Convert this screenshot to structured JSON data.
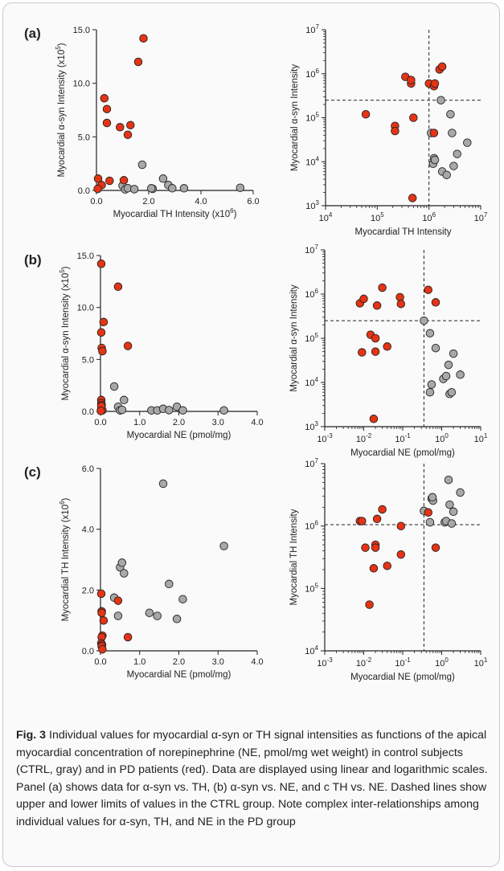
{
  "figure": {
    "caption_label": "Fig. 3",
    "caption_text": "Individual values for myocardial α-syn or TH signal intensities as functions of the apical myocardial concentration of norepinephrine (NE, pmol/mg wet weight) in control subjects (CTRL, gray) and in PD patients (red). Data are displayed using linear and logarithmic scales. Panel (a) shows data for α-syn vs. TH, (b) α-syn vs. NE, and c TH vs. NE. Dashed lines show upper and lower limits of values in the CTRL group. Note complex inter-relationships among individual values for α-syn, TH, and NE in the PD group",
    "colors": {
      "pd": "#e53415",
      "ctrl": "#a8a8a8",
      "marker_edge": "#222222",
      "axis": "#222222"
    }
  },
  "panel_labels": [
    "(a)",
    "(b)",
    "(c)"
  ],
  "chart_data": [
    {
      "id": "a-linear",
      "panel": "(a)",
      "type": "scatter",
      "scale": "linear",
      "xlabel": "Myocardial TH Intensity (x10",
      "xlabel_sup": "6",
      "xlabel_tail": ")",
      "ylabel": "Myocardial α-syn Intensity (x10",
      "ylabel_sup": "5",
      "ylabel_tail": ")",
      "xlim": [
        0,
        6
      ],
      "ylim": [
        0,
        15
      ],
      "xticks": [
        0,
        2,
        4,
        6
      ],
      "xtick_labels": [
        "0.0",
        "2.0",
        "4.0",
        "6.0"
      ],
      "yticks": [
        0,
        5,
        10,
        15
      ],
      "ytick_labels": [
        "0.0",
        "5.0",
        "10.0",
        "15.0"
      ],
      "series": [
        {
          "group": "pd",
          "points": [
            [
              0.06,
              1.1
            ],
            [
              0.2,
              0.5
            ],
            [
              0.3,
              8.6
            ],
            [
              0.4,
              6.3
            ],
            [
              0.4,
              7.6
            ],
            [
              0.5,
              0.9
            ],
            [
              0.9,
              5.9
            ],
            [
              1.05,
              0.95
            ],
            [
              1.2,
              5.2
            ],
            [
              1.3,
              6.1
            ],
            [
              1.6,
              12.0
            ],
            [
              1.8,
              14.2
            ],
            [
              0.05,
              0.15
            ]
          ]
        },
        {
          "group": "ctrl",
          "points": [
            [
              1.0,
              0.45
            ],
            [
              1.1,
              0.1
            ],
            [
              1.2,
              0.2
            ],
            [
              1.75,
              2.4
            ],
            [
              2.15,
              0.15
            ],
            [
              2.55,
              1.1
            ],
            [
              2.75,
              0.5
            ],
            [
              2.9,
              0.2
            ],
            [
              3.35,
              0.2
            ],
            [
              5.5,
              0.25
            ],
            [
              1.45,
              0.12
            ],
            [
              2.1,
              0.2
            ]
          ]
        }
      ]
    },
    {
      "id": "a-log",
      "panel": "(a)",
      "type": "scatter",
      "scale": "log",
      "xlabel": "Myocardial TH Intensity",
      "ylabel": "Myocardial α-syn Intensity",
      "xlim": [
        10000.0,
        10000000.0
      ],
      "ylim": [
        1000.0,
        10000000.0
      ],
      "xtick_exponents": [
        4,
        5,
        6,
        7
      ],
      "ytick_exponents": [
        3,
        4,
        5,
        6,
        7
      ],
      "vline": 1000000,
      "hline": 250000,
      "series": [
        {
          "group": "pd",
          "points": [
            [
              60000,
              120000
            ],
            [
              220000,
              65000
            ],
            [
              220000,
              50000
            ],
            [
              350000,
              850000
            ],
            [
              450000,
              600000
            ],
            [
              450000,
              720000
            ],
            [
              480000,
              1500
            ],
            [
              500000,
              100000
            ],
            [
              1000000,
              600000
            ],
            [
              1250000,
              45000
            ],
            [
              1250000,
              520000
            ],
            [
              1300000,
              600000
            ],
            [
              1600000,
              1250000
            ],
            [
              1800000,
              1450000
            ]
          ]
        },
        {
          "group": "ctrl",
          "points": [
            [
              1100000,
              45000
            ],
            [
              1200000,
              9000
            ],
            [
              1250000,
              12000
            ],
            [
              1300000,
              11000
            ],
            [
              1700000,
              250000
            ],
            [
              1800000,
              6000
            ],
            [
              2200000,
              5000
            ],
            [
              2600000,
              120000
            ],
            [
              2800000,
              45000
            ],
            [
              3000000,
              8000
            ],
            [
              3500000,
              15000
            ],
            [
              5500000,
              27000
            ]
          ]
        }
      ]
    },
    {
      "id": "b-linear",
      "panel": "(b)",
      "type": "scatter",
      "scale": "linear",
      "xlabel": "Myocardial NE (pmol/mg)",
      "ylabel": "Myocardial α-syn Intensity (x10",
      "ylabel_sup": "5",
      "ylabel_tail": ")",
      "xlim": [
        0,
        4
      ],
      "ylim": [
        0,
        15
      ],
      "xticks": [
        0,
        1,
        2,
        3,
        4
      ],
      "xtick_labels": [
        "0.0",
        "1.0",
        "2.0",
        "3.0",
        "4.0"
      ],
      "yticks": [
        0,
        5,
        10,
        15
      ],
      "ytick_labels": [
        "0.0",
        "5.0",
        "10.0",
        "15.0"
      ],
      "series": [
        {
          "group": "pd",
          "points": [
            [
              0.02,
              14.2
            ],
            [
              0.02,
              7.6
            ],
            [
              0.03,
              6.1
            ],
            [
              0.05,
              5.8
            ],
            [
              0.08,
              8.6
            ],
            [
              0.45,
              12.0
            ],
            [
              0.7,
              6.3
            ],
            [
              0.02,
              1.1
            ],
            [
              0.02,
              0.8
            ],
            [
              0.03,
              0.6
            ],
            [
              0.02,
              0.2
            ],
            [
              0.05,
              0.1
            ],
            [
              0.02,
              0.5
            ],
            [
              0.01,
              0.05
            ]
          ]
        },
        {
          "group": "ctrl",
          "points": [
            [
              0.35,
              2.4
            ],
            [
              0.45,
              0.45
            ],
            [
              0.5,
              0.1
            ],
            [
              0.6,
              1.1
            ],
            [
              0.55,
              0.15
            ],
            [
              1.3,
              0.1
            ],
            [
              1.45,
              0.1
            ],
            [
              1.6,
              0.25
            ],
            [
              1.75,
              0.12
            ],
            [
              1.95,
              0.45
            ],
            [
              2.1,
              0.1
            ],
            [
              3.15,
              0.1
            ]
          ]
        }
      ]
    },
    {
      "id": "b-log",
      "panel": "(b)",
      "type": "scatter",
      "scale": "log",
      "xlabel": "Myocardial NE (pmol/mg)",
      "ylabel": "Myocardial α-syn Intensity",
      "xlim": [
        0.001,
        10
      ],
      "ylim": [
        1000.0,
        10000000.0
      ],
      "xtick_exponents": [
        -3,
        -2,
        -1,
        0,
        1
      ],
      "ytick_exponents": [
        3,
        4,
        5,
        6,
        7
      ],
      "vline": 0.35,
      "hline": 250000,
      "series": [
        {
          "group": "pd",
          "points": [
            [
              0.008,
              620000
            ],
            [
              0.01,
              780000
            ],
            [
              0.015,
              120000
            ],
            [
              0.009,
              48000
            ],
            [
              0.02,
              50000
            ],
            [
              0.02,
              100000
            ],
            [
              0.022,
              550000
            ],
            [
              0.03,
              1400000
            ],
            [
              0.04,
              65000
            ],
            [
              0.085,
              850000
            ],
            [
              0.09,
              600000
            ],
            [
              0.45,
              1250000
            ],
            [
              0.7,
              650000
            ],
            [
              0.018,
              1500
            ]
          ]
        },
        {
          "group": "ctrl",
          "points": [
            [
              0.35,
              250000
            ],
            [
              0.5,
              130000
            ],
            [
              0.5,
              6000
            ],
            [
              0.55,
              9000
            ],
            [
              0.7,
              60000
            ],
            [
              1.1,
              12000
            ],
            [
              1.3,
              14000
            ],
            [
              1.5,
              25000
            ],
            [
              1.6,
              5500
            ],
            [
              1.8,
              6000
            ],
            [
              2.0,
              45000
            ],
            [
              3.0,
              15000
            ]
          ]
        }
      ]
    },
    {
      "id": "c-linear",
      "panel": "(c)",
      "type": "scatter",
      "scale": "linear",
      "xlabel": "Myocardial NE (pmol/mg)",
      "ylabel": "Myocardial TH Intensity (x10",
      "ylabel_sup": "6",
      "ylabel_tail": ")",
      "xlim": [
        0,
        4
      ],
      "ylim": [
        0,
        6
      ],
      "xticks": [
        0,
        1,
        2,
        3,
        4
      ],
      "xtick_labels": [
        "0.0",
        "1.0",
        "2.0",
        "3.0",
        "4.0"
      ],
      "yticks": [
        0,
        2,
        4,
        6
      ],
      "ytick_labels": [
        "0.0",
        "2.0",
        "4.0",
        "6.0"
      ],
      "series": [
        {
          "group": "pd",
          "points": [
            [
              0.02,
              1.88
            ],
            [
              0.03,
              1.3
            ],
            [
              0.03,
              1.25
            ],
            [
              0.05,
              0.5
            ],
            [
              0.03,
              0.45
            ],
            [
              0.08,
              1.0
            ],
            [
              0.02,
              0.25
            ],
            [
              0.04,
              0.2
            ],
            [
              0.03,
              0.15
            ],
            [
              0.05,
              0.05
            ],
            [
              0.45,
              1.65
            ],
            [
              0.7,
              0.45
            ]
          ]
        },
        {
          "group": "ctrl",
          "points": [
            [
              0.35,
              1.75
            ],
            [
              0.45,
              1.15
            ],
            [
              0.5,
              2.75
            ],
            [
              0.55,
              2.9
            ],
            [
              0.6,
              2.55
            ],
            [
              1.25,
              1.25
            ],
            [
              1.45,
              1.15
            ],
            [
              1.6,
              5.5
            ],
            [
              1.75,
              2.2
            ],
            [
              1.95,
              1.05
            ],
            [
              2.1,
              1.7
            ],
            [
              3.15,
              3.45
            ]
          ]
        }
      ]
    },
    {
      "id": "c-log",
      "panel": "(c)",
      "type": "scatter",
      "scale": "log",
      "xlabel": "Myocardial NE (pmol/mg)",
      "ylabel": "Myocardial TH Intensity",
      "xlim": [
        0.001,
        10
      ],
      "ylim": [
        10000.0,
        10000000.0
      ],
      "xtick_exponents": [
        -3,
        -2,
        -1,
        0,
        1
      ],
      "ytick_exponents": [
        4,
        5,
        6,
        7
      ],
      "vline": 0.35,
      "hline": 1050000,
      "series": [
        {
          "group": "pd",
          "points": [
            [
              0.008,
              1200000
            ],
            [
              0.009,
              1200000
            ],
            [
              0.011,
              450000
            ],
            [
              0.014,
              55000
            ],
            [
              0.018,
              210000
            ],
            [
              0.02,
              500000
            ],
            [
              0.02,
              450000
            ],
            [
              0.022,
              1300000
            ],
            [
              0.03,
              1850000
            ],
            [
              0.04,
              230000
            ],
            [
              0.09,
              350000
            ],
            [
              0.09,
              1000000
            ],
            [
              0.45,
              1650000
            ],
            [
              0.7,
              450000
            ]
          ]
        },
        {
          "group": "ctrl",
          "points": [
            [
              0.35,
              1750000
            ],
            [
              0.5,
              1150000
            ],
            [
              0.55,
              2750000
            ],
            [
              0.6,
              2550000
            ],
            [
              1.2,
              1150000
            ],
            [
              1.3,
              1200000
            ],
            [
              1.5,
              5500000
            ],
            [
              1.6,
              2200000
            ],
            [
              1.8,
              1100000
            ],
            [
              2.0,
              1700000
            ],
            [
              3.0,
              3450000
            ],
            [
              0.58,
              2900000
            ]
          ]
        }
      ]
    }
  ]
}
